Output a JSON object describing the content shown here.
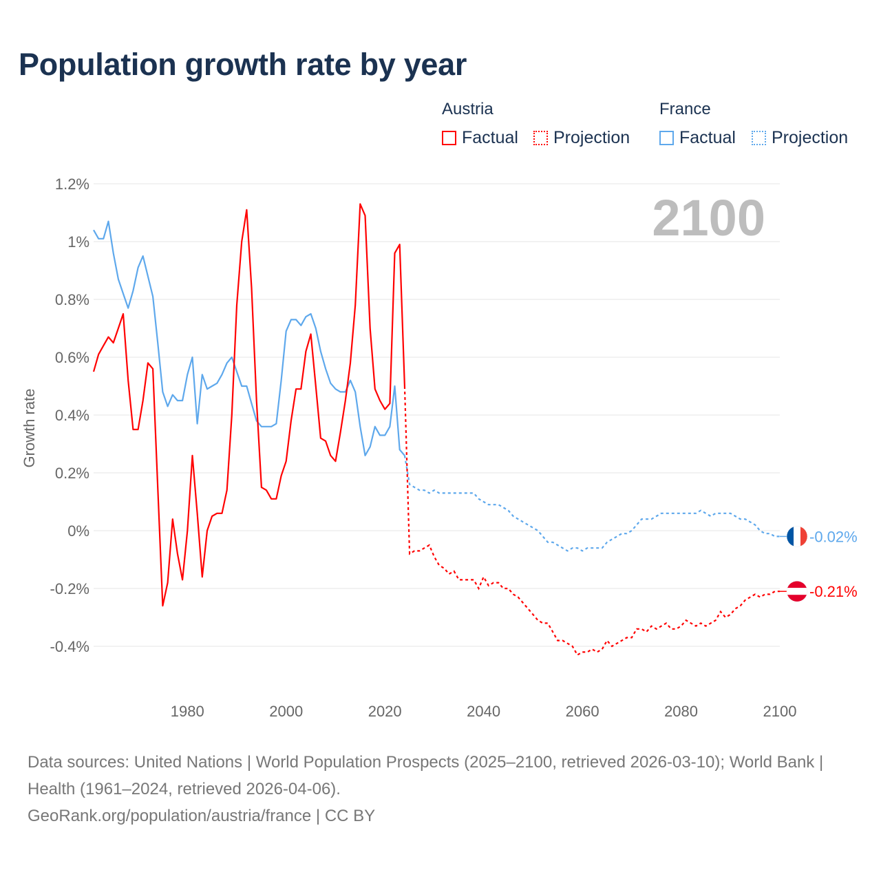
{
  "title": "Population growth rate by year",
  "legend": {
    "groups": [
      {
        "name": "Austria",
        "factual": "Factual",
        "projection": "Projection"
      },
      {
        "name": "France",
        "factual": "Factual",
        "projection": "Projection"
      }
    ]
  },
  "colors": {
    "austria": "#ff0000",
    "france": "#5ea8ec",
    "title": "#1b3251",
    "watermark": "#bdbdbd"
  },
  "footer": {
    "sources": "Data sources: United Nations | World Population Prospects (2025–2100, retrieved 2026-03-10); World Bank | Health (1961–2024, retrieved 2026-04-06).",
    "credit": "GeoRank.org/population/austria/france | CC BY"
  },
  "chart_data": {
    "type": "line",
    "title": "Population growth rate by year",
    "ylabel": "Growth rate",
    "xlabel": "",
    "current_year_label": "2100",
    "xlim": [
      1961,
      2100
    ],
    "ylim": [
      -0.5,
      1.25
    ],
    "x_ticks": [
      "1980",
      "2000",
      "2020",
      "2040",
      "2060",
      "2080",
      "2100"
    ],
    "x_tick_values": [
      1980,
      2000,
      2020,
      2040,
      2060,
      2080,
      2100
    ],
    "y_ticks": [
      "1.2%",
      "1%",
      "0.8%",
      "0.6%",
      "0.4%",
      "0.2%",
      "0%",
      "-0.2%",
      "-0.4%"
    ],
    "y_tick_values": [
      1.2,
      1.0,
      0.8,
      0.6,
      0.4,
      0.2,
      0,
      -0.2,
      -0.4
    ],
    "grid": true,
    "legend_position": "top-right",
    "series": [
      {
        "name": "Austria",
        "end_label": "-0.21%",
        "flag": "austria-flag",
        "factual_start": 1961,
        "factual": [
          0.55,
          0.61,
          0.64,
          0.67,
          0.65,
          0.7,
          0.75,
          0.52,
          0.35,
          0.35,
          0.45,
          0.58,
          0.56,
          0.15,
          -0.26,
          -0.18,
          0.04,
          -0.08,
          -0.17,
          0.0,
          0.26,
          0.06,
          -0.16,
          0.0,
          0.05,
          0.06,
          0.06,
          0.14,
          0.4,
          0.78,
          1.0,
          1.11,
          0.84,
          0.45,
          0.15,
          0.14,
          0.11,
          0.11,
          0.19,
          0.24,
          0.38,
          0.49,
          0.49,
          0.62,
          0.68,
          0.5,
          0.32,
          0.31,
          0.26,
          0.24,
          0.34,
          0.45,
          0.58,
          0.78,
          1.13,
          1.09,
          0.7,
          0.49,
          0.45,
          0.42,
          0.44,
          0.96,
          0.99,
          0.5
        ],
        "projection_start": 2025,
        "projection": [
          -0.08,
          -0.07,
          -0.07,
          -0.06,
          -0.05,
          -0.09,
          -0.12,
          -0.13,
          -0.15,
          -0.14,
          -0.17,
          -0.17,
          -0.17,
          -0.17,
          -0.2,
          -0.16,
          -0.19,
          -0.18,
          -0.18,
          -0.2,
          -0.2,
          -0.22,
          -0.23,
          -0.25,
          -0.27,
          -0.29,
          -0.31,
          -0.32,
          -0.32,
          -0.35,
          -0.38,
          -0.38,
          -0.39,
          -0.4,
          -0.43,
          -0.42,
          -0.42,
          -0.41,
          -0.42,
          -0.41,
          -0.38,
          -0.4,
          -0.39,
          -0.38,
          -0.37,
          -0.37,
          -0.34,
          -0.34,
          -0.35,
          -0.33,
          -0.34,
          -0.33,
          -0.32,
          -0.34,
          -0.34,
          -0.33,
          -0.31,
          -0.32,
          -0.33,
          -0.32,
          -0.33,
          -0.32,
          -0.31,
          -0.28,
          -0.3,
          -0.29,
          -0.27,
          -0.26,
          -0.24,
          -0.23,
          -0.22,
          -0.23,
          -0.22,
          -0.22,
          -0.21,
          -0.21
        ]
      },
      {
        "name": "France",
        "end_label": "-0.02%",
        "flag": "france-flag",
        "factual_start": 1961,
        "factual": [
          1.04,
          1.01,
          1.01,
          1.07,
          0.96,
          0.87,
          0.82,
          0.77,
          0.83,
          0.91,
          0.95,
          0.88,
          0.81,
          0.65,
          0.48,
          0.43,
          0.47,
          0.45,
          0.45,
          0.54,
          0.6,
          0.37,
          0.54,
          0.49,
          0.5,
          0.51,
          0.54,
          0.58,
          0.6,
          0.55,
          0.5,
          0.5,
          0.44,
          0.38,
          0.36,
          0.36,
          0.36,
          0.37,
          0.52,
          0.69,
          0.73,
          0.73,
          0.71,
          0.74,
          0.75,
          0.7,
          0.62,
          0.56,
          0.51,
          0.49,
          0.48,
          0.48,
          0.52,
          0.48,
          0.36,
          0.26,
          0.29,
          0.36,
          0.33,
          0.33,
          0.36,
          0.5,
          0.28,
          0.26
        ],
        "projection_start": 2025,
        "projection": [
          0.16,
          0.15,
          0.14,
          0.14,
          0.13,
          0.14,
          0.13,
          0.13,
          0.13,
          0.13,
          0.13,
          0.13,
          0.13,
          0.13,
          0.11,
          0.1,
          0.09,
          0.09,
          0.09,
          0.08,
          0.07,
          0.05,
          0.04,
          0.03,
          0.02,
          0.01,
          0.0,
          -0.02,
          -0.04,
          -0.04,
          -0.05,
          -0.06,
          -0.07,
          -0.06,
          -0.06,
          -0.07,
          -0.06,
          -0.06,
          -0.06,
          -0.06,
          -0.04,
          -0.03,
          -0.02,
          -0.01,
          -0.01,
          0.0,
          0.02,
          0.04,
          0.04,
          0.04,
          0.05,
          0.06,
          0.06,
          0.06,
          0.06,
          0.06,
          0.06,
          0.06,
          0.06,
          0.07,
          0.06,
          0.05,
          0.06,
          0.06,
          0.06,
          0.06,
          0.05,
          0.04,
          0.04,
          0.03,
          0.02,
          0.0,
          -0.01,
          -0.01,
          -0.02,
          -0.02
        ]
      }
    ]
  }
}
